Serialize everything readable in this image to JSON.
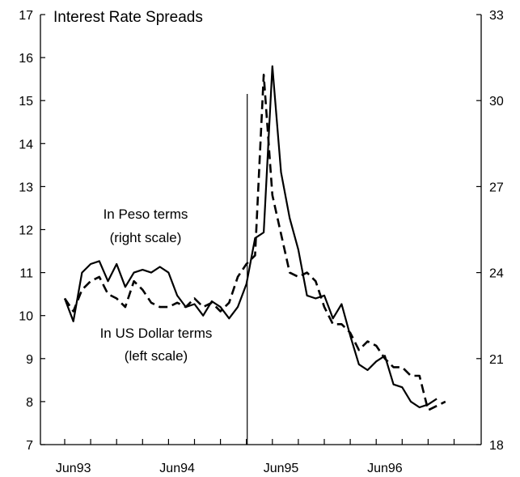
{
  "chart_data": {
    "type": "line",
    "title": "Interest Rate Spreads",
    "x_tick_labels": [
      "Jun93",
      "Jun94",
      "Jun95",
      "Jun96"
    ],
    "left_axis": {
      "min": 7,
      "max": 17,
      "ticks": [
        7,
        8,
        9,
        10,
        11,
        12,
        13,
        14,
        15,
        16,
        17
      ]
    },
    "right_axis": {
      "min": 18,
      "max": 33,
      "ticks": [
        18,
        21,
        24,
        27,
        30,
        33
      ]
    },
    "vertical_marker_month_index": 21,
    "grid": false,
    "annotations": {
      "peso": [
        "In Peso terms",
        "(right scale)"
      ],
      "usd": [
        "In US Dollar terms",
        "(left scale)"
      ]
    },
    "series": [
      {
        "axis": "right",
        "style": "solid",
        "start": "1993-05",
        "values": [
          23.1,
          22.3,
          24.0,
          24.3,
          24.4,
          23.7,
          24.3,
          23.5,
          24.0,
          24.1,
          24.0,
          24.2,
          24.0,
          23.2,
          22.8,
          22.9,
          22.5,
          23.0,
          22.8,
          22.4,
          22.8,
          23.6,
          25.2,
          25.4,
          31.2,
          27.5,
          25.9,
          24.8,
          23.2,
          23.1,
          23.2,
          22.4,
          22.9,
          21.8,
          20.8,
          20.6,
          20.9,
          21.1,
          20.1,
          20.0,
          19.5,
          19.3,
          19.4,
          19.6
        ]
      },
      {
        "axis": "left",
        "style": "dashed",
        "start": "1993-05",
        "values": [
          10.4,
          10.1,
          10.6,
          10.8,
          10.9,
          10.5,
          10.4,
          10.2,
          10.8,
          10.6,
          10.3,
          10.2,
          10.2,
          10.3,
          10.2,
          10.4,
          10.2,
          10.3,
          10.1,
          10.3,
          10.9,
          11.2,
          11.4,
          15.6,
          12.8,
          11.9,
          11.0,
          10.9,
          11.0,
          10.8,
          10.2,
          9.8,
          9.8,
          9.6,
          9.2,
          9.4,
          9.3,
          9.0,
          8.8,
          8.8,
          8.6,
          8.6,
          7.8,
          7.9,
          8.0
        ]
      }
    ]
  }
}
